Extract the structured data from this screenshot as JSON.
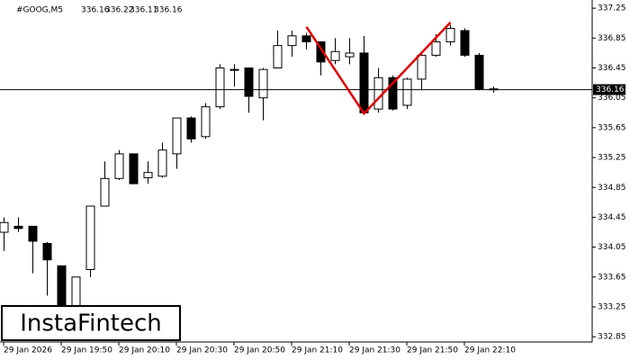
{
  "chart_data": {
    "type": "candlestick",
    "symbol": "#GOOG,M5",
    "header_ohlc": [
      336.16,
      336.22,
      336.11,
      336.16
    ],
    "current_price": 336.16,
    "logo": "InstaFintech",
    "categories": [
      "29 Jan 2026",
      null,
      null,
      null,
      "29 Jan 19:50",
      null,
      null,
      null,
      "29 Jan 20:10",
      null,
      null,
      null,
      "29 Jan 20:30",
      null,
      null,
      null,
      "29 Jan 20:50",
      null,
      null,
      null,
      "29 Jan 21:10",
      null,
      null,
      null,
      "29 Jan 21:30",
      null,
      null,
      null,
      "29 Jan 21:50",
      null,
      null,
      null,
      "29 Jan 22:10",
      null,
      null
    ],
    "open": [
      334.25,
      334.33,
      334.33,
      334.1,
      333.8,
      333.1,
      333.75,
      334.6,
      334.97,
      335.3,
      334.98,
      335.0,
      335.3,
      335.78,
      335.53,
      335.93,
      336.43,
      336.45,
      336.05,
      336.45,
      336.75,
      336.88,
      336.8,
      336.55,
      336.6,
      336.65,
      335.9,
      336.32,
      335.95,
      336.3,
      336.62,
      336.8,
      336.95,
      336.62,
      336.17
    ],
    "high": [
      334.45,
      334.45,
      334.33,
      334.12,
      333.8,
      333.65,
      334.6,
      335.2,
      335.35,
      335.3,
      335.2,
      335.45,
      335.78,
      335.8,
      335.98,
      336.5,
      336.5,
      336.45,
      336.45,
      336.95,
      336.95,
      336.92,
      336.8,
      336.85,
      336.85,
      336.88,
      336.45,
      336.35,
      336.32,
      336.65,
      336.9,
      337.03,
      336.98,
      336.65,
      336.2
    ],
    "low": [
      334.0,
      334.25,
      333.7,
      333.4,
      333.1,
      333.0,
      333.65,
      334.6,
      334.95,
      334.9,
      334.9,
      334.98,
      335.1,
      335.45,
      335.5,
      335.9,
      336.2,
      335.85,
      335.75,
      336.45,
      336.6,
      336.7,
      336.35,
      336.5,
      336.5,
      335.85,
      335.85,
      335.88,
      335.9,
      336.15,
      336.6,
      336.75,
      336.6,
      336.15,
      336.12
    ],
    "close": [
      334.38,
      334.3,
      334.13,
      333.88,
      333.2,
      333.65,
      334.6,
      334.97,
      335.3,
      334.9,
      335.05,
      335.35,
      335.78,
      335.5,
      335.93,
      336.45,
      336.42,
      336.07,
      336.43,
      336.75,
      336.88,
      336.8,
      336.53,
      336.67,
      336.65,
      335.85,
      336.32,
      335.9,
      336.3,
      336.62,
      336.8,
      336.98,
      336.62,
      336.17,
      336.16
    ],
    "pattern": {
      "color": "#e00000",
      "x": [
        21,
        25,
        31
      ],
      "values": [
        337.0,
        335.84,
        337.06
      ]
    },
    "ylim": [
      332.78,
      337.36
    ],
    "yticks": [
      337.25,
      336.85,
      336.45,
      336.05,
      335.65,
      335.25,
      334.85,
      334.45,
      334.05,
      333.65,
      333.25,
      332.85
    ]
  }
}
